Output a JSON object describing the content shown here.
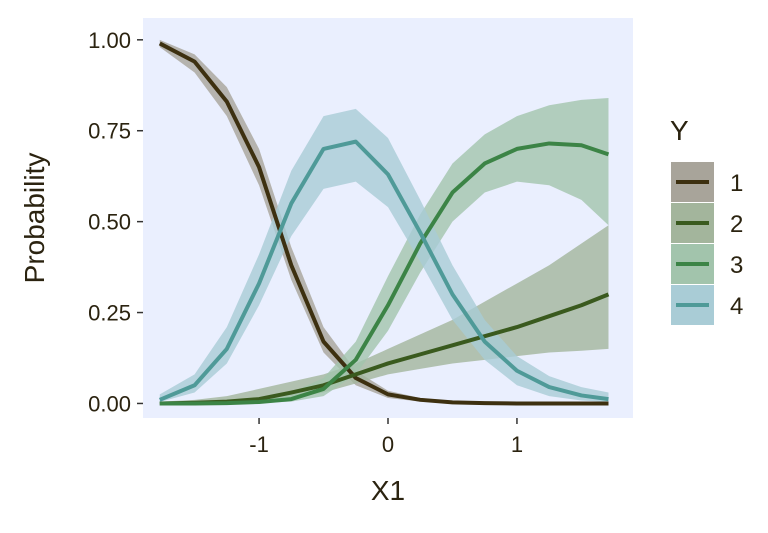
{
  "chart_data": {
    "type": "line",
    "title": "",
    "xlabel": "X1",
    "ylabel": "Probability",
    "xlim": [
      -1.9,
      1.9
    ],
    "ylim": [
      -0.04,
      1.06
    ],
    "x_ticks": [
      -1,
      0,
      1
    ],
    "x_tick_labels": [
      "-1",
      "0",
      "1"
    ],
    "y_ticks": [
      0,
      0.25,
      0.5,
      0.75,
      1
    ],
    "y_tick_labels": [
      "0.00",
      "0.25",
      "0.50",
      "0.75",
      "1.00"
    ],
    "grid": false,
    "panel_background": "#eaeffe",
    "legend": {
      "title": "Y",
      "placement": "right"
    },
    "x": [
      -1.77,
      -1.5,
      -1.25,
      -1,
      -0.75,
      -0.5,
      -0.25,
      0,
      0.25,
      0.5,
      0.75,
      1,
      1.25,
      1.5,
      1.71
    ],
    "series": [
      {
        "name": "1",
        "color": "#3d3010",
        "band_color": "#a8a49a",
        "values": [
          0.99,
          0.94,
          0.83,
          0.65,
          0.38,
          0.17,
          0.07,
          0.025,
          0.01,
          0.003,
          0.001,
          0,
          0,
          0,
          0
        ],
        "lower": [
          0.98,
          0.91,
          0.79,
          0.6,
          0.34,
          0.14,
          0.05,
          0.015,
          0.005,
          0.001,
          0,
          0,
          0,
          0,
          0
        ],
        "upper": [
          1.0,
          0.96,
          0.87,
          0.7,
          0.43,
          0.21,
          0.09,
          0.035,
          0.015,
          0.006,
          0.003,
          0.001,
          0,
          0,
          0
        ]
      },
      {
        "name": "2",
        "color": "#3a5a1e",
        "band_color": "#a3b59c",
        "values": [
          0,
          0.002,
          0.005,
          0.012,
          0.03,
          0.05,
          0.08,
          0.11,
          0.135,
          0.16,
          0.185,
          0.21,
          0.24,
          0.27,
          0.3
        ],
        "lower": [
          0,
          0,
          0.001,
          0.004,
          0.015,
          0.03,
          0.055,
          0.08,
          0.095,
          0.11,
          0.12,
          0.13,
          0.14,
          0.145,
          0.15
        ],
        "upper": [
          0.005,
          0.01,
          0.02,
          0.04,
          0.06,
          0.08,
          0.11,
          0.15,
          0.19,
          0.23,
          0.28,
          0.33,
          0.38,
          0.44,
          0.49
        ]
      },
      {
        "name": "3",
        "color": "#3c8446",
        "band_color": "#a2c4ac",
        "values": [
          0,
          0,
          0.001,
          0.004,
          0.012,
          0.04,
          0.12,
          0.27,
          0.44,
          0.58,
          0.66,
          0.7,
          0.715,
          0.71,
          0.685
        ],
        "lower": [
          0,
          0,
          0,
          0.001,
          0.005,
          0.02,
          0.08,
          0.2,
          0.36,
          0.5,
          0.58,
          0.61,
          0.6,
          0.56,
          0.49
        ],
        "upper": [
          0.002,
          0.004,
          0.008,
          0.015,
          0.03,
          0.07,
          0.17,
          0.35,
          0.52,
          0.66,
          0.74,
          0.79,
          0.82,
          0.835,
          0.84
        ]
      },
      {
        "name": "4",
        "color": "#4f9a98",
        "band_color": "#a9ccd6",
        "values": [
          0.01,
          0.05,
          0.15,
          0.33,
          0.55,
          0.7,
          0.72,
          0.63,
          0.47,
          0.3,
          0.17,
          0.09,
          0.045,
          0.022,
          0.012
        ],
        "lower": [
          0.004,
          0.03,
          0.11,
          0.27,
          0.46,
          0.59,
          0.61,
          0.54,
          0.39,
          0.23,
          0.12,
          0.05,
          0.02,
          0.008,
          0.004
        ],
        "upper": [
          0.025,
          0.08,
          0.21,
          0.41,
          0.64,
          0.79,
          0.81,
          0.73,
          0.56,
          0.38,
          0.23,
          0.13,
          0.075,
          0.045,
          0.03
        ]
      }
    ]
  }
}
